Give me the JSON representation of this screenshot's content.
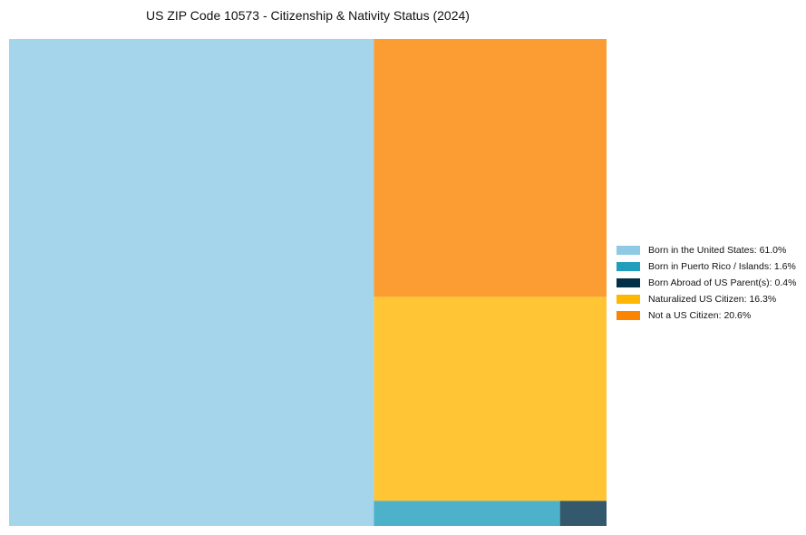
{
  "chart_data": {
    "type": "treemap",
    "title": "US ZIP Code 10573 - Citizenship & Nativity Status (2024)",
    "legend_position": "right",
    "categories": [
      "Born in the United States",
      "Born in Puerto Rico / Islands",
      "Born Abroad of US Parent(s)",
      "Naturalized US Citizen",
      "Not a US Citizen"
    ],
    "values": [
      61.0,
      1.6,
      0.4,
      16.3,
      20.6
    ],
    "unit": "%",
    "colors": [
      "#8ecae6",
      "#219ebc",
      "#023047",
      "#ffb703",
      "#fb8500"
    ],
    "legend_labels": [
      "Born in the United States: 61.0%",
      "Born in Puerto Rico / Islands: 1.6%",
      "Born Abroad of US Parent(s): 0.4%",
      "Naturalized US Citizen: 16.3%",
      "Not a US Citizen: 20.6%"
    ]
  }
}
